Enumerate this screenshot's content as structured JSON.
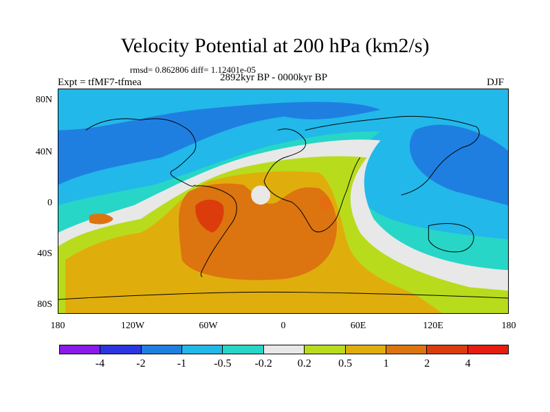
{
  "title": "Velocity Potential at 200 hPa (km2/s)",
  "stats": "rmsd= 0.862806 diff= 1.12401e-05",
  "expt": "Expt = tfMF7-tfmea",
  "period": "2892kyr BP - 0000kyr BP",
  "season": "DJF",
  "lat_labels": [
    "80N",
    "40N",
    "0",
    "40S",
    "80S"
  ],
  "lon_labels": [
    "180",
    "120W",
    "60W",
    "0",
    "60E",
    "120E",
    "180"
  ],
  "colorbar": {
    "colors": [
      "#8a1bea",
      "#2b36e0",
      "#1f7fe0",
      "#22b8ea",
      "#27d6c6",
      "#e8e8e8",
      "#b8dc1c",
      "#e0ae0c",
      "#dc7410",
      "#dc3c0c",
      "#e61e10"
    ],
    "labels": [
      "-4",
      "-2",
      "-1",
      "-0.5",
      "-0.2",
      "0.2",
      "0.5",
      "1",
      "2",
      "4"
    ]
  }
}
